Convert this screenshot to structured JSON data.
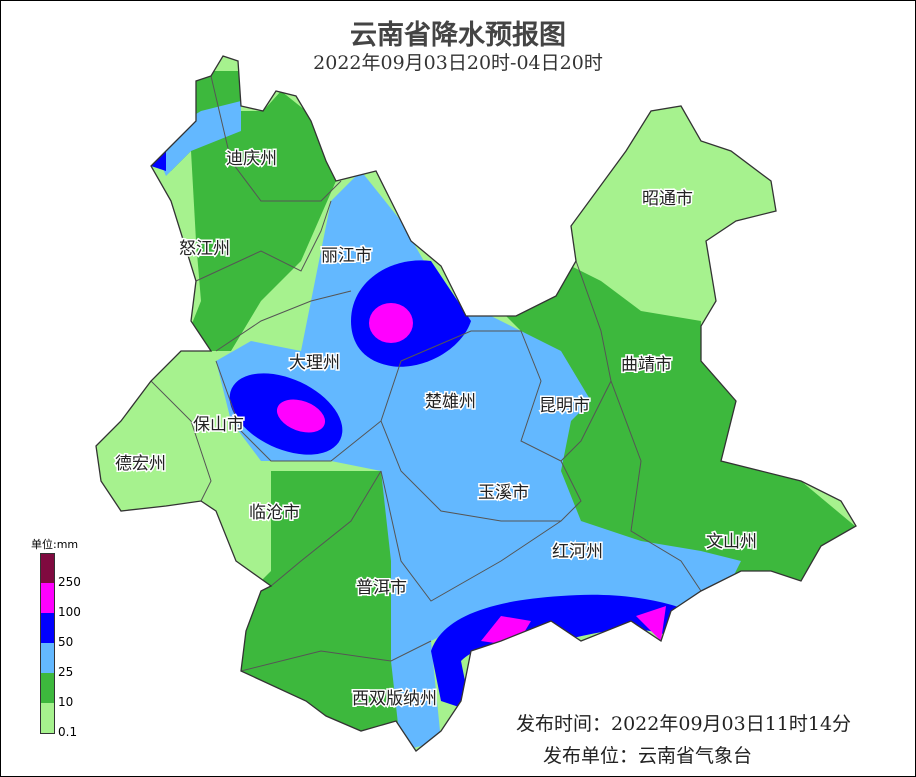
{
  "title": "云南省降水预报图",
  "subtitle": "2022年09月03日20时-04日20时",
  "regions": [
    {
      "name": "迪庆州"
    },
    {
      "name": "怒江州"
    },
    {
      "name": "丽江市"
    },
    {
      "name": "昭通市"
    },
    {
      "name": "大理州"
    },
    {
      "name": "曲靖市"
    },
    {
      "name": "楚雄州"
    },
    {
      "name": "昆明市"
    },
    {
      "name": "保山市"
    },
    {
      "name": "德宏州"
    },
    {
      "name": "玉溪市"
    },
    {
      "name": "临沧市"
    },
    {
      "name": "文山州"
    },
    {
      "name": "红河州"
    },
    {
      "name": "普洱市"
    },
    {
      "name": "西双版纳州"
    }
  ],
  "legend": {
    "unit": "单位:mm",
    "ticks": [
      "250",
      "100",
      "50",
      "25",
      "10",
      "0.1"
    ],
    "colors": [
      "#7f0a3f",
      "#ff00ff",
      "#0000ff",
      "#63b8ff",
      "#3db83d",
      "#a6f28e"
    ]
  },
  "footer": {
    "publish_time": "发布时间：2022年09月03日11时14分",
    "publisher": "发布单位：云南省气象台"
  }
}
